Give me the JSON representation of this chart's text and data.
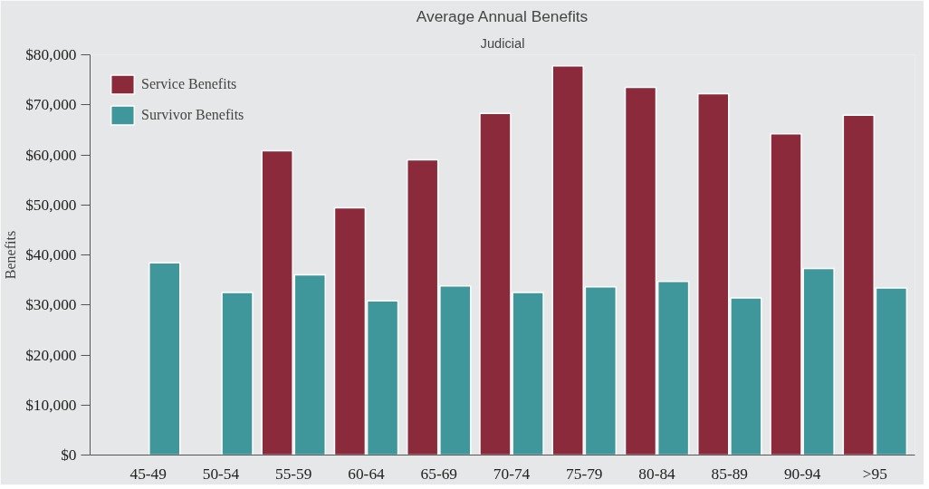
{
  "chart_data": {
    "type": "bar",
    "title": "Average Annual Benefits",
    "subtitle": "Judicial",
    "ylabel": "Benefits",
    "categories": [
      "45-49",
      "50-54",
      "55-59",
      "60-64",
      "65-69",
      "70-74",
      "75-79",
      "80-84",
      "85-89",
      "90-94",
      ">95"
    ],
    "series": [
      {
        "name": "Service Benefits",
        "color": "#8a2a3b",
        "values": [
          null,
          null,
          60800,
          49400,
          59000,
          68300,
          77800,
          73500,
          72200,
          64200,
          67900
        ]
      },
      {
        "name": "Survivor Benefits",
        "color": "#3f979b",
        "values": [
          38400,
          32500,
          36000,
          30800,
          33800,
          32500,
          33600,
          34700,
          31400,
          37300,
          33400
        ]
      }
    ],
    "ylim": [
      0,
      80000
    ],
    "yticks": [
      {
        "value": 0,
        "label": "$0"
      },
      {
        "value": 10000,
        "label": "$10,000"
      },
      {
        "value": 20000,
        "label": "$20,000"
      },
      {
        "value": 30000,
        "label": "$30,000"
      },
      {
        "value": 40000,
        "label": "$40,000"
      },
      {
        "value": 50000,
        "label": "$50,000"
      },
      {
        "value": 60000,
        "label": "$60,000"
      },
      {
        "value": 70000,
        "label": "$70,000"
      },
      {
        "value": 80000,
        "label": "$80,000"
      }
    ],
    "legend": "top left"
  }
}
